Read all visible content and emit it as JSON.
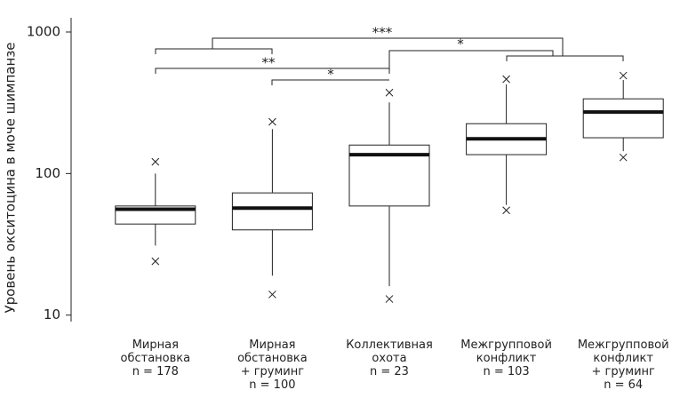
{
  "chart_data": {
    "type": "box",
    "ylabel": "Уровень окситоцина в моче шимпанзе",
    "categories": [
      "Мирная\nобстановка\nn = 178",
      "Мирная\nобстановка\n+ груминг\nn = 100",
      "Коллективная\nохота\nn = 23",
      "Межгрупповой\nконфликт\nn = 103",
      "Межгрупповой\nконфликт\n+ груминг\nn = 64"
    ],
    "boxes": [
      {
        "whisker_low": 31,
        "q1": 44,
        "median": 56,
        "q3": 59,
        "whisker_high": 100,
        "outliers": [
          121,
          24
        ]
      },
      {
        "whisker_low": 19,
        "q1": 40,
        "median": 57,
        "q3": 73,
        "whisker_high": 206,
        "outliers": [
          232,
          14
        ]
      },
      {
        "whisker_low": 16,
        "q1": 59,
        "median": 136,
        "q3": 159,
        "whisker_high": 318,
        "outliers": [
          373,
          13
        ]
      },
      {
        "whisker_low": 60,
        "q1": 136,
        "median": 176,
        "q3": 225,
        "whisker_high": 426,
        "outliers": [
          464,
          55
        ]
      },
      {
        "whisker_low": 144,
        "q1": 179,
        "median": 272,
        "q3": 337,
        "whisker_high": 458,
        "outliers": [
          492,
          130
        ]
      }
    ],
    "annotations": [
      "***",
      "*",
      "**",
      "*"
    ],
    "log_scale": true,
    "ylim": [
      9,
      1260
    ],
    "yticks": [
      10,
      100,
      1000
    ]
  }
}
